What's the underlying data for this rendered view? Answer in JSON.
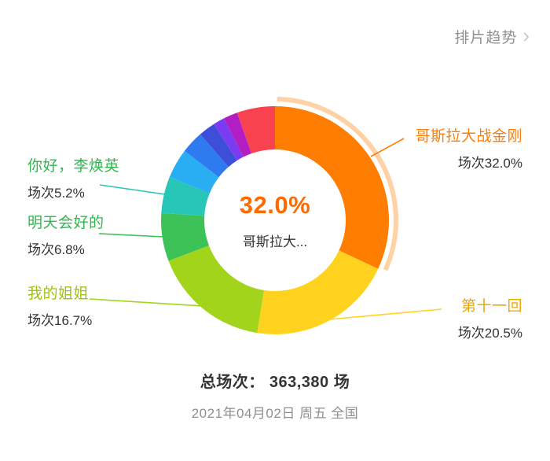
{
  "header": {
    "title": "排片趋势",
    "chevron": "›"
  },
  "donut": {
    "center_percent": "32.0%",
    "center_percent_color": "#ff6a00",
    "center_name": "哥斯拉大..."
  },
  "callouts": {
    "godzilla": {
      "title": "哥斯拉大战金刚",
      "detail": "场次32.0%",
      "color": "#ff7d00"
    },
    "eleventh": {
      "title": "第十一回",
      "detail": "场次20.5%",
      "color": "#eda800"
    },
    "sister": {
      "title": "我的姐姐",
      "detail": "场次16.7%",
      "color": "#9cc312"
    },
    "tomorrow": {
      "title": "明天会好的",
      "detail": "场次6.8%",
      "color": "#2eb84d"
    },
    "hi_mom": {
      "title": "你好，李焕英",
      "detail": "场次5.2%",
      "color": "#2eb84d"
    }
  },
  "footer": {
    "total": "总场次： 363,380 场",
    "date": "2021年04月02日 周五 全国"
  },
  "chart_data": {
    "type": "pie",
    "title": "排片趋势",
    "value_unit": "场次占比 %",
    "legend_position": "none",
    "donut": true,
    "selected_index": 0,
    "center": {
      "percent_label": "32.0%",
      "name_label": "哥斯拉大..."
    },
    "total_sessions_label": "总场次： 363,380 场",
    "date_label": "2021年04月02日 周五 全国",
    "series": [
      {
        "name": "哥斯拉大战金刚",
        "percent": 32.0,
        "color": "#ff7d00",
        "labeled": true
      },
      {
        "name": "第十一回",
        "percent": 20.5,
        "color": "#ffd21e",
        "labeled": true
      },
      {
        "name": "我的姐姐",
        "percent": 16.7,
        "color": "#a2d41c",
        "labeled": true
      },
      {
        "name": "明天会好的",
        "percent": 6.8,
        "color": "#3dc257",
        "labeled": true
      },
      {
        "name": "你好，李焕英",
        "percent": 5.2,
        "color": "#27c6b7",
        "labeled": true
      },
      {
        "name": "",
        "percent": 4.2,
        "color": "#29aef3",
        "labeled": false
      },
      {
        "name": "",
        "percent": 3.2,
        "color": "#2e7bf0",
        "labeled": false
      },
      {
        "name": "",
        "percent": 2.4,
        "color": "#3d4ed8",
        "labeled": false
      },
      {
        "name": "",
        "percent": 1.6,
        "color": "#7b3bf0",
        "labeled": false
      },
      {
        "name": "",
        "percent": 2.0,
        "color": "#b31ec3",
        "labeled": false
      },
      {
        "name": "",
        "percent": 5.4,
        "color": "#f8424f",
        "labeled": false
      }
    ]
  }
}
